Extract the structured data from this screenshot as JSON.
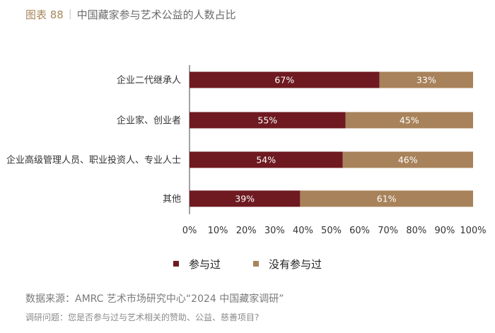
{
  "figure": {
    "number": "图表 88",
    "title": "中国藏家参与艺术公益的人数占比"
  },
  "footer": {
    "source": "数据来源：AMRC 艺术市场研究中心“2024 中国藏家调研”",
    "question": "调研问题：您是否参与过与艺术相关的赞助、公益、慈善项目?"
  },
  "colors": {
    "participated": "#6e1a20",
    "not_participated": "#a8825a"
  },
  "chart_data": {
    "type": "bar",
    "orientation": "horizontal",
    "stacked": true,
    "title": "中国藏家参与艺术公益的人数占比",
    "categories": [
      "企业二代继承人",
      "企业家、创业者",
      "企业高级管理人员、职业投资人、专业人士",
      "其他"
    ],
    "series": [
      {
        "name": "参与过",
        "values": [
          67,
          55,
          54,
          39
        ],
        "labels": [
          "67%",
          "55%",
          "54%",
          "39%"
        ]
      },
      {
        "name": "没有参与过",
        "values": [
          33,
          45,
          46,
          61
        ],
        "labels": [
          "33%",
          "45%",
          "46%",
          "61%"
        ]
      }
    ],
    "xlim": [
      0,
      100
    ],
    "xticks": [
      "0%",
      "10%",
      "20%",
      "30%",
      "40%",
      "50%",
      "60%",
      "70%",
      "80%",
      "90%",
      "100%"
    ],
    "legend_position": "bottom",
    "grid": false
  }
}
